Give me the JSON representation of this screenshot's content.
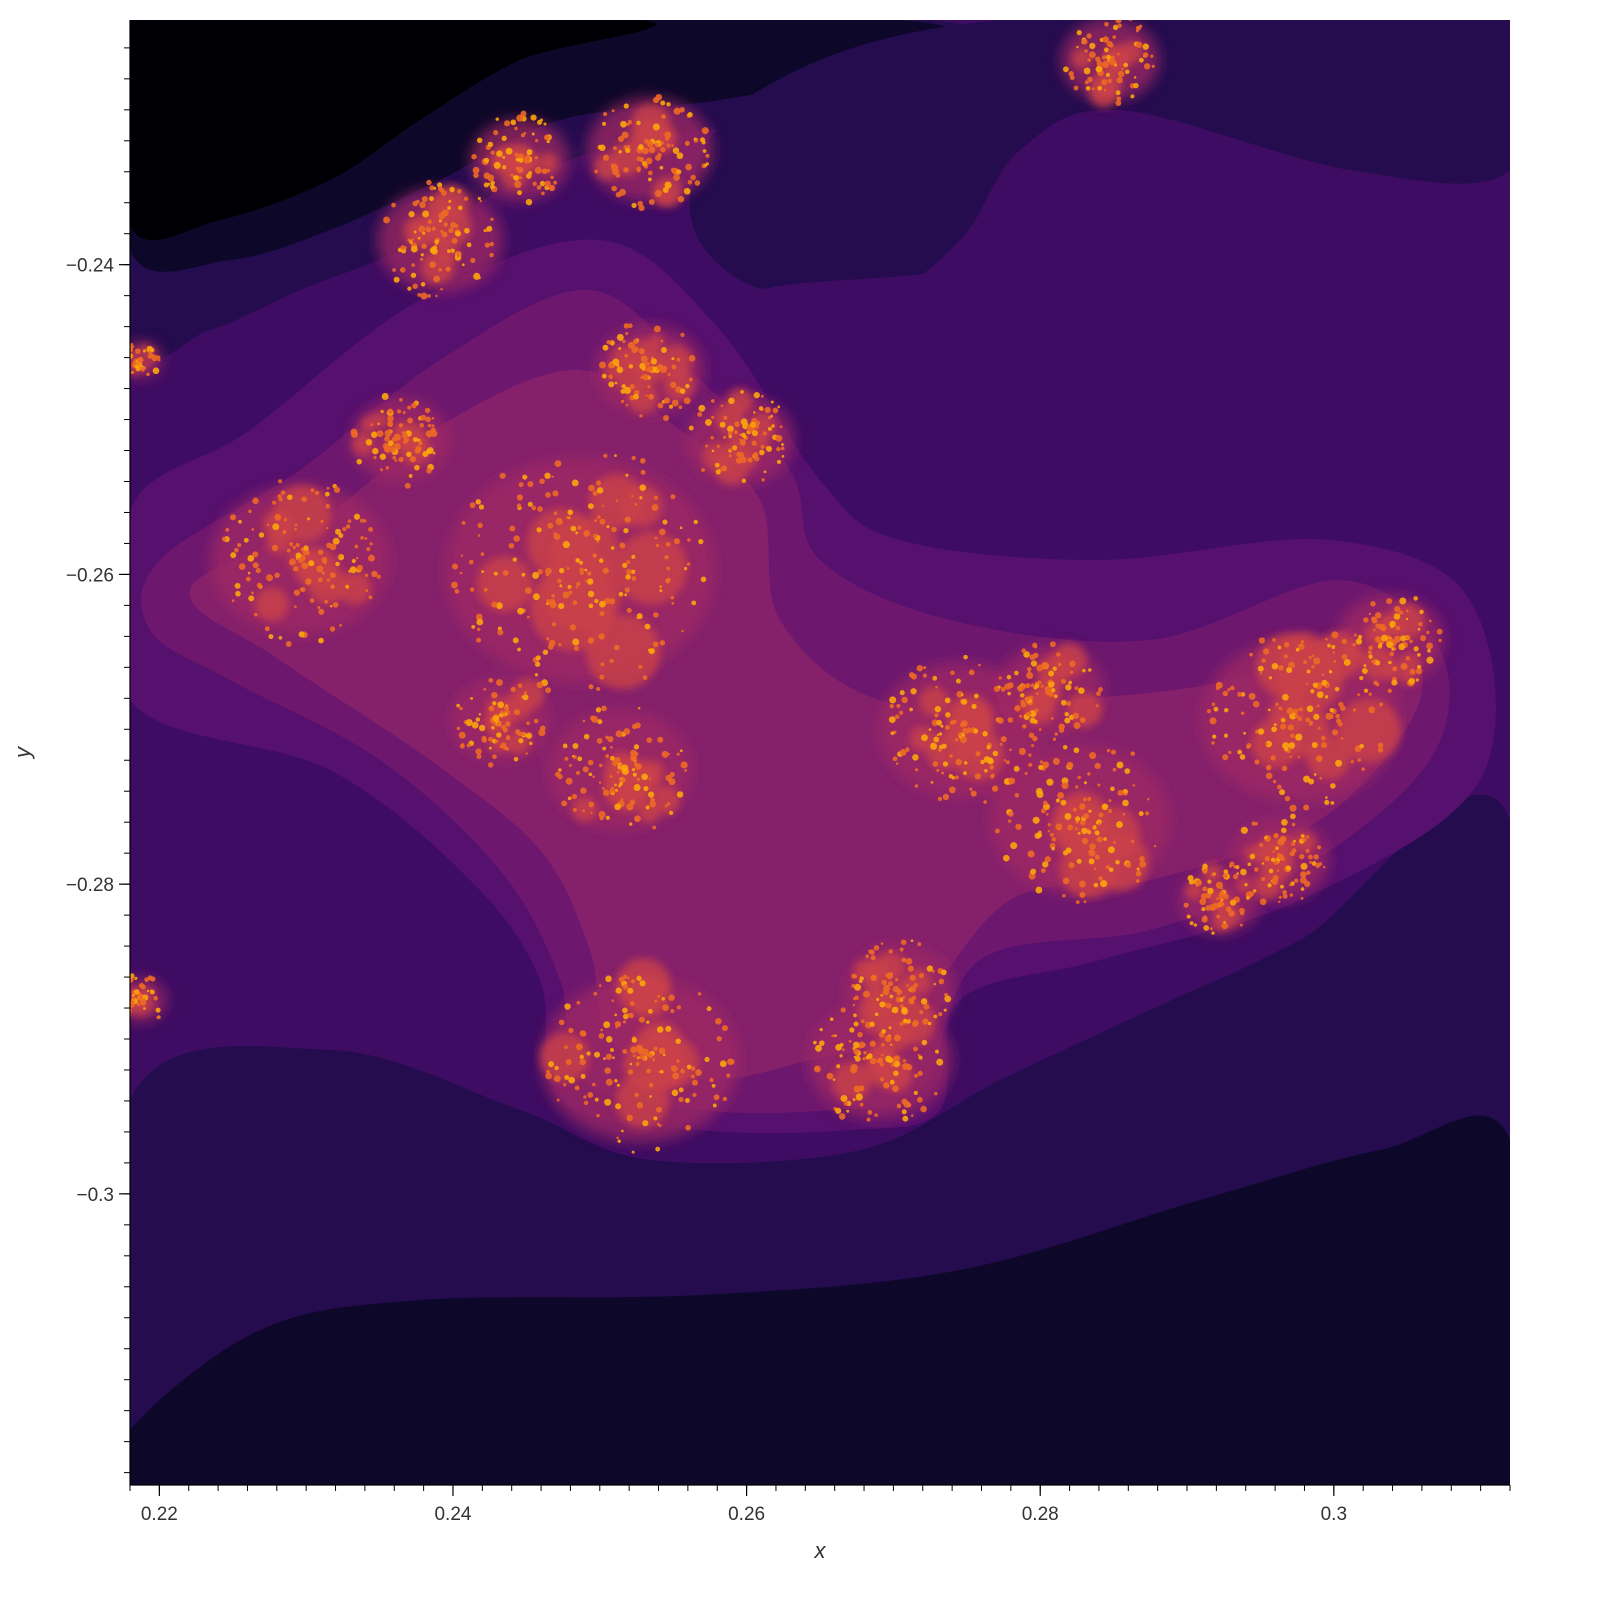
{
  "chart_data": {
    "type": "heatmap",
    "title": "",
    "xlabel": "x",
    "ylabel": "y",
    "xlim": [
      0.218,
      0.312
    ],
    "ylim": [
      -0.3188,
      -0.2242
    ],
    "x_major_ticks": [
      0.22,
      0.24,
      0.26,
      0.28,
      0.3
    ],
    "x_tick_labels": [
      "0.22",
      "0.24",
      "0.26",
      "0.28",
      "0.3"
    ],
    "y_major_ticks": [
      -0.24,
      -0.26,
      -0.28,
      -0.3
    ],
    "y_tick_labels": [
      "−0.24",
      "−0.26",
      "−0.28",
      "−0.3"
    ],
    "minor_tick_step": 0.002,
    "colormap": [
      "#000004",
      "#0d0829",
      "#240c4f",
      "#3e0c63",
      "#56106e",
      "#6d186e",
      "#85216b",
      "#a02a63",
      "#cb4149",
      "#ed6925",
      "#fca50a"
    ],
    "grid": false,
    "legend": "none"
  }
}
